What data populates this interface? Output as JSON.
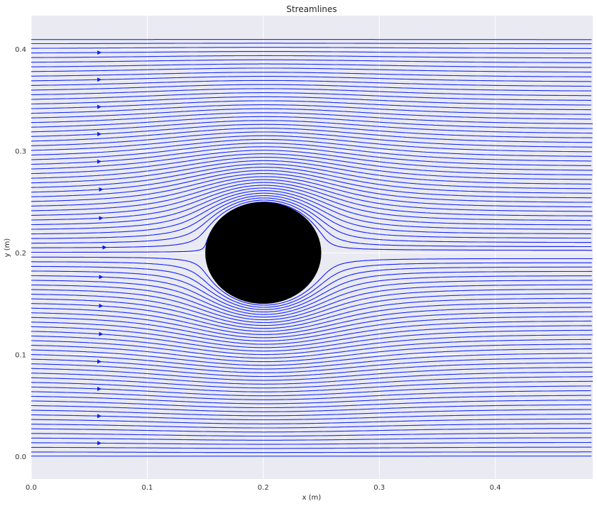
{
  "chart_data": {
    "type": "streamline",
    "title": "Streamlines",
    "xlabel": "x (m)",
    "ylabel": "y (m)",
    "xlim": [
      0,
      0.484
    ],
    "ylim": [
      -0.022,
      0.433
    ],
    "xticks": [
      {
        "value": 0.0,
        "label": "0.0"
      },
      {
        "value": 0.1,
        "label": "0.1"
      },
      {
        "value": 0.2,
        "label": "0.2"
      },
      {
        "value": 0.3,
        "label": "0.3"
      },
      {
        "value": 0.4,
        "label": "0.4"
      }
    ],
    "yticks": [
      {
        "value": 0.0,
        "label": "0.0"
      },
      {
        "value": 0.1,
        "label": "0.1"
      },
      {
        "value": 0.2,
        "label": "0.2"
      },
      {
        "value": 0.3,
        "label": "0.3"
      },
      {
        "value": 0.4,
        "label": "0.4"
      }
    ],
    "grid": true,
    "channel": {
      "y_min": 0.0,
      "y_max": 0.41
    },
    "obstacle": {
      "shape": "circle",
      "center": [
        0.2,
        0.2
      ],
      "radius": 0.05,
      "color": "#000000"
    },
    "flow_direction": "left-to-right",
    "colors": {
      "background": "#eaeaf2",
      "grid": "#ffffff",
      "slow": "#0000ff",
      "fast": "#40e0d0"
    }
  }
}
